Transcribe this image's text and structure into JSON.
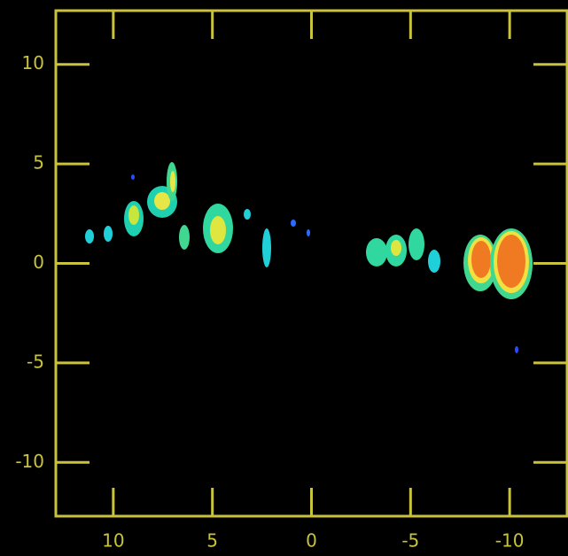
{
  "chart_data": {
    "type": "image",
    "xlim": [
      12.9,
      -12.9
    ],
    "ylim": [
      -12.7,
      12.7
    ],
    "xticks": [
      10,
      5,
      0,
      -5,
      -10
    ],
    "yticks": [
      10,
      5,
      0,
      -5,
      -10
    ],
    "axis_color": "#c9c23c",
    "background": "#000000"
  }
}
